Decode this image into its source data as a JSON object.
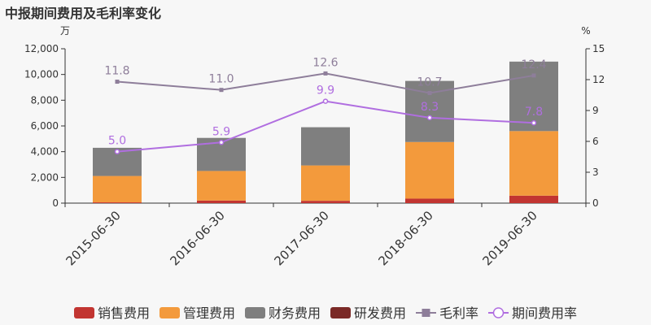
{
  "chart_data": {
    "type": "bar",
    "title": "中报期间费用及毛利率变化",
    "y_left_unit": "万",
    "y_right_unit": "%",
    "categories": [
      "2015-06-30",
      "2016-06-30",
      "2017-06-30",
      "2018-06-30",
      "2019-06-30"
    ],
    "ylim_left": [
      0,
      12000
    ],
    "yticks_left": [
      0,
      2000,
      4000,
      6000,
      8000,
      10000,
      12000
    ],
    "yticks_left_labels": [
      "0",
      "2,000",
      "4,000",
      "6,000",
      "8,000",
      "10,000",
      "12,000"
    ],
    "ylim_right": [
      0,
      15
    ],
    "yticks_right": [
      0,
      3,
      6,
      9,
      12,
      15
    ],
    "stacked": true,
    "bar_series": [
      {
        "name": "销售费用",
        "color": "#c23531",
        "values": [
          60,
          200,
          180,
          350,
          580
        ]
      },
      {
        "name": "管理费用",
        "color": "#f39a3c",
        "values": [
          2050,
          2300,
          2750,
          4400,
          5020
        ]
      },
      {
        "name": "财务费用",
        "color": "#7f7f7f",
        "values": [
          2190,
          2570,
          2970,
          4750,
          5400
        ]
      },
      {
        "name": "研发费用",
        "color": "#7b2a27",
        "values": [
          0,
          0,
          0,
          0,
          0
        ]
      }
    ],
    "line_series": [
      {
        "name": "毛利率",
        "color": "#8e7e9a",
        "marker": "square",
        "axis": "right",
        "values": [
          11.8,
          11.0,
          12.6,
          10.7,
          12.4
        ],
        "labels": [
          "11.8",
          "11.0",
          "12.6",
          "10.7",
          "12.4"
        ]
      },
      {
        "name": "期间费用率",
        "color": "#b06ee0",
        "marker": "circle",
        "axis": "right",
        "values": [
          5.0,
          5.9,
          9.9,
          8.3,
          7.8
        ],
        "labels": [
          "5.0",
          "5.9",
          "9.9",
          "8.3",
          "7.8"
        ]
      }
    ],
    "legend_position": "bottom",
    "grid": false
  }
}
